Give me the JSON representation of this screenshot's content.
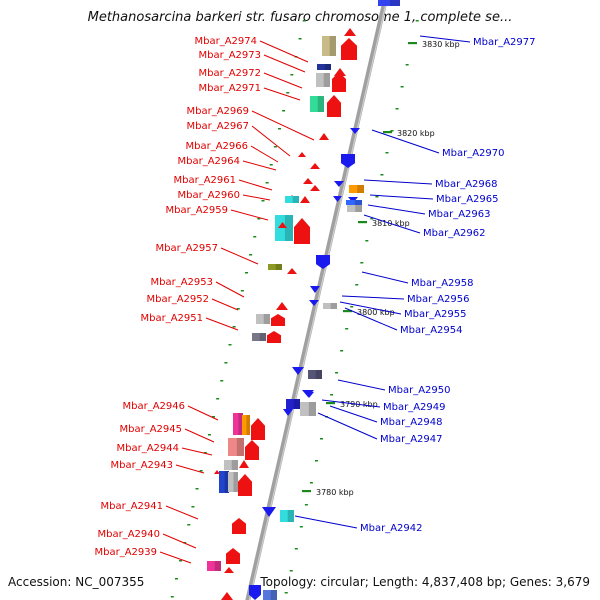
{
  "title": "Methanosarcina barkeri str. fusaro chromosome 1, complete se...",
  "footer": {
    "accession": "Accession: NC_007355",
    "topology": "Topology: circular; Length: 4,837,408 bp; Genes: 3,679"
  },
  "colors": {
    "left_label": "#e00000",
    "right_label": "#0000cc",
    "backbone": "#a0a0a0",
    "tick": "#1a8a1a"
  },
  "ticks": [
    "3830 kbp",
    "3820 kbp",
    "3810 kbp",
    "3800 kbp",
    "3790 kbp",
    "3780 kbp"
  ],
  "left_labels": [
    "Mbar_A2974",
    "Mbar_A2973",
    "Mbar_A2972",
    "Mbar_A2971",
    "Mbar_A2969",
    "Mbar_A2967",
    "Mbar_A2966",
    "Mbar_A2964",
    "Mbar_A2961",
    "Mbar_A2960",
    "Mbar_A2959",
    "Mbar_A2957",
    "Mbar_A2953",
    "Mbar_A2952",
    "Mbar_A2951",
    "Mbar_A2946",
    "Mbar_A2945",
    "Mbar_A2944",
    "Mbar_A2943",
    "Mbar_A2941",
    "Mbar_A2940",
    "Mbar_A2939"
  ],
  "right_labels": [
    "Mbar_A2977",
    "Mbar_A2970",
    "Mbar_A2968",
    "Mbar_A2965",
    "Mbar_A2963",
    "Mbar_A2962",
    "Mbar_A2958",
    "Mbar_A2956",
    "Mbar_A2955",
    "Mbar_A2954",
    "Mbar_A2950",
    "Mbar_A2949",
    "Mbar_A2948",
    "Mbar_A2947",
    "Mbar_A2942"
  ]
}
